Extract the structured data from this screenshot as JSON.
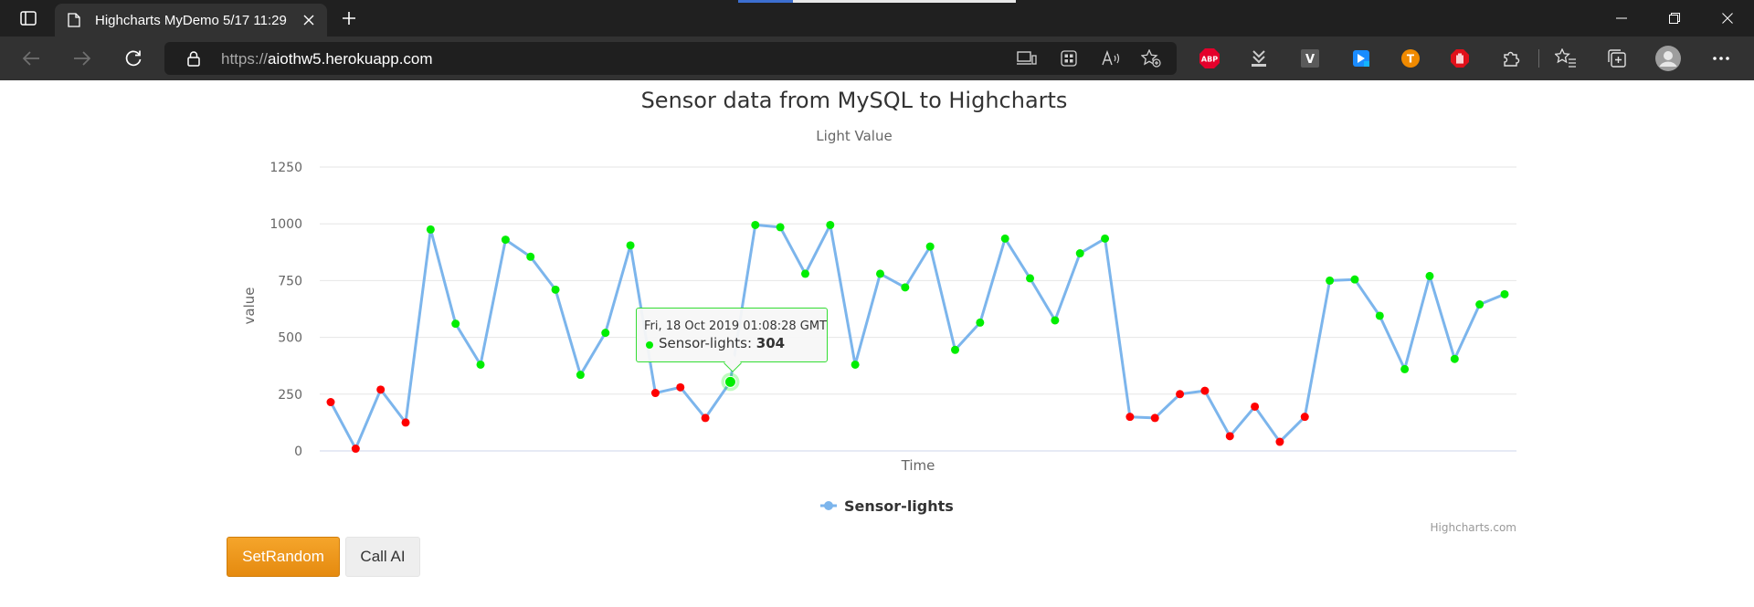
{
  "browser": {
    "tab_title": "Highcharts MyDemo 5/17 11:29",
    "url_protocol": "https://",
    "url_host": "aiothw5.herokuapp.com",
    "extensions": [
      {
        "name": "adblock-plus-icon",
        "label": "ABP",
        "color": "#e4002b"
      },
      {
        "name": "download-extension-icon",
        "label": "",
        "color": "#cccccc"
      },
      {
        "name": "v-extension-icon",
        "label": "V",
        "color": "#5a5a5a"
      },
      {
        "name": "blue-arrow-extension-icon",
        "label": "",
        "color": "#1a8cff"
      },
      {
        "name": "orange-t-extension-icon",
        "label": "T",
        "color": "#f08a00"
      },
      {
        "name": "red-hand-extension-icon",
        "label": "",
        "color": "#e0101a"
      }
    ]
  },
  "chart": {
    "title": "Sensor data from MySQL to Highcharts",
    "subtitle": "Light Value",
    "xlabel": "Time",
    "ylabel": "value",
    "credits": "Highcharts.com"
  },
  "chart_data": {
    "type": "line",
    "title": "Sensor data from MySQL to Highcharts",
    "subtitle": "Light Value",
    "xlabel": "Time",
    "ylabel": "value",
    "ylim": [
      0,
      1250
    ],
    "yticks": [
      0,
      250,
      500,
      750,
      1000,
      1250
    ],
    "grid": true,
    "legend_position": "bottom-center",
    "series": [
      {
        "name": "Sensor-lights",
        "line_color": "#7cb5ec",
        "threshold": 300,
        "low_color": "#ff0000",
        "high_color": "#00ee00",
        "values": [
          215,
          10,
          270,
          125,
          975,
          560,
          380,
          930,
          855,
          710,
          335,
          520,
          905,
          255,
          280,
          145,
          304,
          995,
          985,
          780,
          995,
          380,
          780,
          720,
          900,
          445,
          565,
          935,
          760,
          575,
          870,
          935,
          150,
          145,
          250,
          265,
          65,
          195,
          40,
          150,
          750,
          755,
          595,
          360,
          770,
          405,
          645,
          690
        ]
      }
    ],
    "tooltip": {
      "point_index": 16,
      "date": "Fri, 18 Oct 2019 01:08:28 GMT",
      "series": "Sensor-lights",
      "value": "304"
    }
  },
  "buttons": {
    "set_random": "SetRandom",
    "call_ai": "Call AI"
  }
}
